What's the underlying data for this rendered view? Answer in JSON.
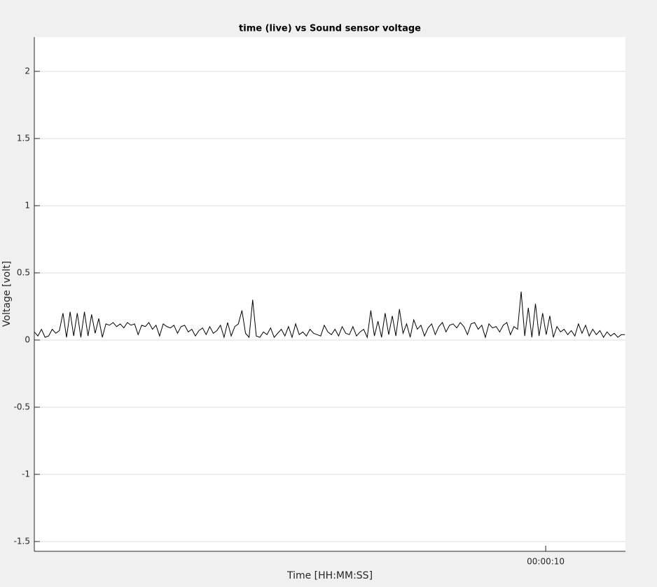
{
  "chart_data": {
    "type": "line",
    "title": "time (live) vs Sound sensor voltage",
    "xlabel": "Time [HH:MM:SS]",
    "ylabel": "Voltage [volt]",
    "color": "#000000",
    "grid": true,
    "xlim": [
      0,
      11.56
    ],
    "xticks": [
      {
        "value": 10,
        "label": "00:00:10"
      }
    ],
    "ylim": [
      -1.573,
      2.255
    ],
    "yticks": [
      -1.5,
      -1,
      -0.5,
      0,
      0.5,
      1,
      1.5,
      2
    ],
    "x": [
      0,
      0.07,
      0.14,
      0.21,
      0.28,
      0.35,
      0.42,
      0.49,
      0.56,
      0.63,
      0.7,
      0.77,
      0.84,
      0.91,
      0.98,
      1.05,
      1.12,
      1.19,
      1.26,
      1.33,
      1.4,
      1.47,
      1.54,
      1.61,
      1.68,
      1.75,
      1.82,
      1.89,
      1.96,
      2.03,
      2.1,
      2.17,
      2.24,
      2.31,
      2.38,
      2.45,
      2.52,
      2.59,
      2.66,
      2.73,
      2.8,
      2.87,
      2.94,
      3.01,
      3.08,
      3.15,
      3.22,
      3.29,
      3.36,
      3.43,
      3.5,
      3.57,
      3.64,
      3.71,
      3.78,
      3.85,
      3.92,
      3.99,
      4.06,
      4.13,
      4.2,
      4.27,
      4.34,
      4.41,
      4.48,
      4.55,
      4.62,
      4.69,
      4.76,
      4.83,
      4.9,
      4.97,
      5.04,
      5.11,
      5.18,
      5.25,
      5.32,
      5.39,
      5.46,
      5.53,
      5.6,
      5.67,
      5.74,
      5.81,
      5.88,
      5.95,
      6.02,
      6.09,
      6.16,
      6.23,
      6.3,
      6.37,
      6.44,
      6.51,
      6.58,
      6.65,
      6.72,
      6.79,
      6.86,
      6.93,
      7,
      7.07,
      7.14,
      7.21,
      7.28,
      7.35,
      7.42,
      7.49,
      7.56,
      7.63,
      7.7,
      7.77,
      7.84,
      7.91,
      7.98,
      8.05,
      8.12,
      8.19,
      8.26,
      8.33,
      8.4,
      8.47,
      8.54,
      8.61,
      8.68,
      8.75,
      8.82,
      8.89,
      8.96,
      9.03,
      9.1,
      9.17,
      9.24,
      9.31,
      9.38,
      9.45,
      9.52,
      9.59,
      9.66,
      9.73,
      9.8,
      9.87,
      9.94,
      10.01,
      10.08,
      10.15,
      10.22,
      10.29,
      10.36,
      10.43,
      10.5,
      10.57,
      10.64,
      10.71,
      10.78,
      10.85,
      10.92,
      10.99,
      11.06,
      11.13,
      11.2,
      11.27,
      11.34,
      11.41,
      11.48,
      11.55
    ],
    "values": [
      0.06,
      0.03,
      0.08,
      0.02,
      0.03,
      0.08,
      0.05,
      0.07,
      0.2,
      0.02,
      0.21,
      0.03,
      0.2,
      0.02,
      0.21,
      0.03,
      0.19,
      0.05,
      0.16,
      0.02,
      0.12,
      0.11,
      0.13,
      0.1,
      0.12,
      0.09,
      0.13,
      0.11,
      0.12,
      0.04,
      0.11,
      0.1,
      0.13,
      0.08,
      0.11,
      0.03,
      0.12,
      0.1,
      0.09,
      0.11,
      0.05,
      0.1,
      0.11,
      0.06,
      0.08,
      0.03,
      0.07,
      0.09,
      0.04,
      0.1,
      0.05,
      0.07,
      0.11,
      0.02,
      0.13,
      0.03,
      0.1,
      0.12,
      0.22,
      0.05,
      0.02,
      0.3,
      0.03,
      0.02,
      0.06,
      0.04,
      0.09,
      0.02,
      0.05,
      0.08,
      0.03,
      0.1,
      0.02,
      0.12,
      0.04,
      0.06,
      0.03,
      0.08,
      0.05,
      0.04,
      0.03,
      0.11,
      0.06,
      0.04,
      0.08,
      0.03,
      0.1,
      0.05,
      0.04,
      0.1,
      0.03,
      0.06,
      0.08,
      0.02,
      0.22,
      0.03,
      0.14,
      0.02,
      0.2,
      0.04,
      0.18,
      0.03,
      0.23,
      0.05,
      0.12,
      0.02,
      0.15,
      0.08,
      0.11,
      0.03,
      0.09,
      0.12,
      0.04,
      0.1,
      0.13,
      0.06,
      0.11,
      0.12,
      0.09,
      0.13,
      0.1,
      0.04,
      0.12,
      0.13,
      0.08,
      0.11,
      0.02,
      0.12,
      0.09,
      0.1,
      0.06,
      0.11,
      0.13,
      0.04,
      0.1,
      0.08,
      0.36,
      0.03,
      0.24,
      0.02,
      0.27,
      0.03,
      0.2,
      0.04,
      0.18,
      0.02,
      0.1,
      0.06,
      0.08,
      0.04,
      0.07,
      0.03,
      0.12,
      0.05,
      0.11,
      0.03,
      0.08,
      0.04,
      0.07,
      0.02,
      0.06,
      0.03,
      0.05,
      0.02,
      0.04,
      0.04
    ]
  }
}
